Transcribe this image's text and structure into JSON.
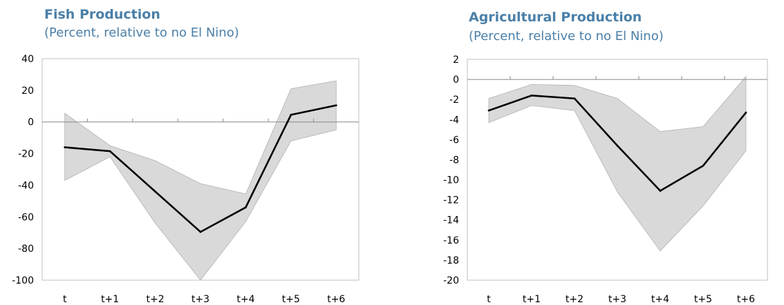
{
  "chart_data": [
    {
      "type": "line",
      "title": "Fish Production",
      "subtitle": "(Percent, relative to no El Nino)",
      "categories": [
        "t",
        "t+1",
        "t+2",
        "t+3",
        "t+4",
        "t+5",
        "t+6"
      ],
      "series": [
        {
          "role": "median",
          "values": [
            -16,
            -18.5,
            -44,
            -69.5,
            -54,
            4.5,
            10.5
          ]
        },
        {
          "role": "upper",
          "values": [
            5.5,
            -15,
            -24.5,
            -39,
            -45.5,
            21,
            26
          ]
        },
        {
          "role": "lower",
          "values": [
            -37,
            -22,
            -64,
            -100,
            -63,
            -12,
            -5
          ]
        }
      ],
      "ylim": [
        -100,
        40
      ],
      "yticks": [
        40,
        20,
        0,
        -20,
        -40,
        -60,
        -80,
        -100
      ],
      "colors": {
        "band": "#d9d9d9",
        "line": "#000000",
        "frame": "#bfbfbf",
        "zero": "#888888"
      }
    },
    {
      "type": "line",
      "title": "Agricultural Production",
      "subtitle": "(Percent, relative to no El Nino)",
      "categories": [
        "t",
        "t+1",
        "t+2",
        "t+3",
        "t+4",
        "t+5",
        "t+6"
      ],
      "series": [
        {
          "role": "median",
          "values": [
            -3.1,
            -1.6,
            -1.9,
            -6.6,
            -11.1,
            -8.6,
            -3.3
          ]
        },
        {
          "role": "upper",
          "values": [
            -1.9,
            -0.5,
            -0.6,
            -1.9,
            -5.2,
            -4.7,
            0.3
          ]
        },
        {
          "role": "lower",
          "values": [
            -4.3,
            -2.6,
            -3.1,
            -11.2,
            -17.1,
            -12.6,
            -7.1
          ]
        }
      ],
      "ylim": [
        -20,
        2
      ],
      "yticks": [
        2,
        0,
        -2,
        -4,
        -6,
        -8,
        -10,
        -12,
        -14,
        -16,
        -18,
        -20
      ],
      "colors": {
        "band": "#d9d9d9",
        "line": "#000000",
        "frame": "#bfbfbf",
        "zero": "#888888"
      }
    }
  ]
}
